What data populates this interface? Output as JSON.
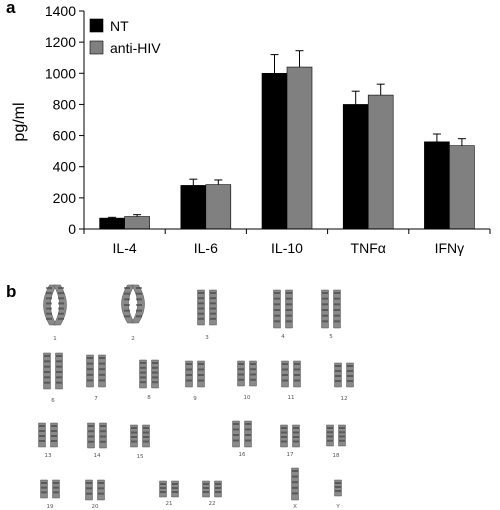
{
  "panel_a_label": "a",
  "panel_b_label": "b",
  "chart_data": {
    "type": "bar",
    "categories": [
      "IL-4",
      "IL-6",
      "IL-10",
      "TNFα",
      "IFNγ"
    ],
    "series": [
      {
        "name": "NT",
        "color": "#000000",
        "values": [
          70,
          280,
          1000,
          800,
          560
        ],
        "errors": [
          5,
          40,
          120,
          85,
          50
        ]
      },
      {
        "name": "anti-HIV",
        "color": "#808080",
        "values": [
          80,
          285,
          1040,
          860,
          535
        ],
        "errors": [
          12,
          30,
          105,
          70,
          45
        ]
      }
    ],
    "ylabel": "pg/ml",
    "xlabel": "",
    "ylim": [
      0,
      1400
    ],
    "yticks": [
      0,
      200,
      400,
      600,
      800,
      1000,
      1200,
      1400
    ],
    "legend": "top-left",
    "grid": false
  },
  "karyotype": {
    "labels": [
      "1",
      "2",
      "3",
      "4",
      "5",
      "6",
      "7",
      "8",
      "9",
      "10",
      "11",
      "12",
      "13",
      "14",
      "15",
      "16",
      "17",
      "18",
      "19",
      "20",
      "21",
      "22",
      "X",
      "Y"
    ]
  }
}
